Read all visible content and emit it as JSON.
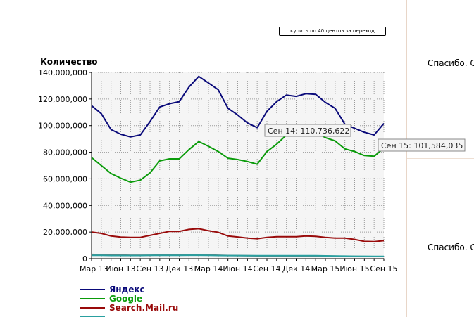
{
  "header": {
    "button_label": "купить по 40 центов за переход"
  },
  "sidebar": {
    "thanks_1": "Спасибо. С",
    "thanks_2": "Спасибо. С"
  },
  "chart_data": {
    "type": "line",
    "ylabel": "Количество",
    "ylim": [
      0,
      140000000
    ],
    "yticks": [
      0,
      20000000,
      40000000,
      60000000,
      80000000,
      100000000,
      120000000,
      140000000
    ],
    "ytick_labels": [
      "0",
      "20,000,000",
      "40,000,000",
      "60,000,000",
      "80,000,000",
      "100,000,000",
      "120,000,000",
      "140,000,000"
    ],
    "x": [
      "Мар 13",
      "Апр 13",
      "Май 13",
      "Июн 13",
      "Июл 13",
      "Авг 13",
      "Сен 13",
      "Окт 13",
      "Ноя 13",
      "Дек 13",
      "Янв 14",
      "Фев 14",
      "Мар 14",
      "Апр 14",
      "Май 14",
      "Июн 14",
      "Июл 14",
      "Авг 14",
      "Сен 14",
      "Окт 14",
      "Ноя 14",
      "Дек 14",
      "Янв 15",
      "Фев 15",
      "Мар 15",
      "Апр 15",
      "Май 15",
      "Июн 15",
      "Июл 15",
      "Авг 15",
      "Сен 15"
    ],
    "xtick_labels": [
      {
        "index": 0,
        "label": "Мар 13"
      },
      {
        "index": 3,
        "label": "Июн 13"
      },
      {
        "index": 6,
        "label": "Сен 13"
      },
      {
        "index": 9,
        "label": "Дек 13"
      },
      {
        "index": 12,
        "label": "Мар 14"
      },
      {
        "index": 15,
        "label": "Июн 14"
      },
      {
        "index": 18,
        "label": "Сен 14"
      },
      {
        "index": 21,
        "label": "Дек 14"
      },
      {
        "index": 24,
        "label": "Мар 15"
      },
      {
        "index": 27,
        "label": "Июн 15"
      },
      {
        "index": 30,
        "label": "Сен 15"
      }
    ],
    "grid": true,
    "legend": "bottom-left",
    "series": [
      {
        "name": "Яндекс",
        "color": "#0a0a7a",
        "values": [
          115000000,
          109000000,
          97000000,
          93500000,
          91500000,
          93000000,
          103000000,
          114000000,
          116500000,
          118000000,
          129000000,
          137000000,
          132000000,
          127000000,
          113000000,
          108000000,
          102000000,
          98500000,
          110736622,
          118000000,
          123000000,
          122000000,
          124000000,
          123500000,
          117500000,
          113000000,
          101000000,
          98000000,
          95000000,
          93000000,
          101584035
        ]
      },
      {
        "name": "Google",
        "color": "#0a9b0a",
        "values": [
          76000000,
          70000000,
          64000000,
          60500000,
          57500000,
          59000000,
          64500000,
          73500000,
          75000000,
          75000000,
          82000000,
          88000000,
          84500000,
          80500000,
          75500000,
          74500000,
          73000000,
          71000000,
          80500000,
          86000000,
          93000000,
          95000000,
          96500000,
          95000000,
          91000000,
          88500000,
          82500000,
          80500000,
          77500000,
          77000000,
          83000000
        ]
      },
      {
        "name": "Search.Mail.ru",
        "color": "#990a0a",
        "values": [
          20000000,
          19000000,
          17000000,
          16200000,
          16000000,
          16000000,
          17500000,
          19000000,
          20500000,
          20500000,
          22000000,
          22500000,
          21000000,
          19800000,
          17000000,
          16300000,
          15500000,
          15000000,
          16000000,
          16500000,
          16500000,
          16500000,
          17000000,
          16800000,
          16000000,
          15500000,
          15500000,
          14500000,
          13000000,
          12800000,
          13500000
        ]
      },
      {
        "name": "",
        "color": "#2aa0a0",
        "values": [
          2500000,
          2500000,
          2400000,
          2400000,
          2400000,
          2400000,
          2500000,
          2500000,
          2500000,
          2500000,
          2600000,
          2600000,
          2500000,
          2400000,
          2300000,
          2300000,
          2200000,
          2200000,
          2200000,
          2200000,
          2200000,
          2200000,
          2200000,
          2200000,
          2100000,
          2000000,
          1900000,
          1800000,
          1800000,
          1700000,
          1700000
        ]
      },
      {
        "name": "",
        "color": "#777777",
        "values": [
          3200000,
          3000000,
          2800000,
          2700000,
          2600000,
          2600000,
          2600000,
          2700000,
          2700000,
          2700000,
          2800000,
          2900000,
          2800000,
          2600000,
          2400000,
          2300000,
          2200000,
          2100000,
          2100000,
          2100000,
          2100000,
          2100000,
          2100000,
          2100000,
          2000000,
          1900000,
          1800000,
          1700000,
          1600000,
          1600000,
          1600000
        ]
      }
    ],
    "tooltips": [
      {
        "index": 18,
        "series": 0,
        "text": "Сен 14: 110,736,622"
      },
      {
        "index": 30,
        "series": 0,
        "text": "Сен 15: 101,584,035"
      }
    ]
  }
}
